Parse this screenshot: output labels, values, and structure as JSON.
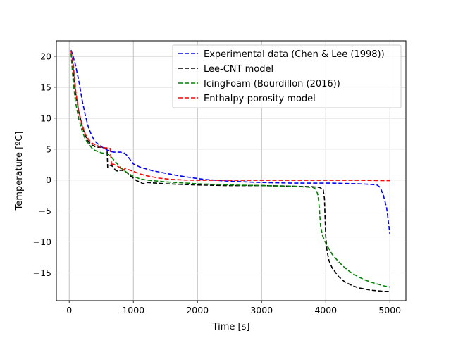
{
  "chart_data": {
    "type": "line",
    "xlabel": "Time [s]",
    "ylabel": "Temperature [ºC]",
    "xlim": [
      -200,
      5250
    ],
    "ylim": [
      -19.5,
      22.5
    ],
    "xticks": [
      0,
      1000,
      2000,
      3000,
      4000,
      5000
    ],
    "yticks": [
      -15,
      -10,
      -5,
      0,
      5,
      10,
      15,
      20
    ],
    "xtick_labels": [
      "0",
      "1000",
      "2000",
      "3000",
      "4000",
      "5000"
    ],
    "ytick_labels": [
      "−15",
      "−10",
      "−5",
      "0",
      "5",
      "10",
      "15",
      "20"
    ],
    "grid": true,
    "legend_position": "upper right",
    "series": [
      {
        "name": "Experimental data (Chen & Lee (1998))",
        "color": "#0000ff",
        "x": [
          30,
          60,
          100,
          150,
          200,
          250,
          300,
          350,
          400,
          450,
          500,
          550,
          600,
          650,
          700,
          750,
          800,
          850,
          900,
          950,
          1000,
          1100,
          1200,
          1300,
          1500,
          1700,
          1900,
          2100,
          2500,
          3000,
          3500,
          3900,
          4100,
          4500,
          4700,
          4800,
          4850,
          4900,
          4950,
          5000
        ],
        "y": [
          21,
          20,
          18.5,
          16,
          13,
          10.5,
          8.5,
          7.2,
          6.3,
          5.8,
          5.4,
          5.1,
          4.8,
          4.6,
          4.5,
          4.5,
          4.5,
          4.4,
          4,
          3.3,
          2.6,
          2.1,
          1.8,
          1.5,
          1.1,
          0.7,
          0.4,
          0.1,
          -0.2,
          -0.4,
          -0.5,
          -0.5,
          -0.5,
          -0.6,
          -0.7,
          -0.8,
          -1.2,
          -2.5,
          -4.5,
          -8.7
        ]
      },
      {
        "name": "Lee-CNT model",
        "color": "#000000",
        "x": [
          30,
          60,
          100,
          150,
          200,
          250,
          300,
          350,
          400,
          450,
          500,
          550,
          590,
          600,
          640,
          680,
          720,
          760,
          800,
          850,
          900,
          950,
          1000,
          1050,
          1100,
          1150,
          1200,
          1500,
          2000,
          2500,
          3000,
          3500,
          3800,
          3900,
          3960,
          3980,
          4000,
          4020,
          4050,
          4100,
          4200,
          4300,
          4400,
          4500,
          4600,
          4700,
          4800,
          4900,
          5000
        ],
        "y": [
          20.5,
          18,
          14,
          11,
          8.8,
          7.2,
          6.2,
          5.7,
          5.4,
          5.3,
          5.3,
          5.2,
          5.1,
          2,
          2.4,
          2.2,
          1.6,
          1.4,
          1.6,
          1.5,
          1.2,
          0.7,
          0.3,
          -0.1,
          -0.3,
          -0.6,
          -0.4,
          -0.6,
          -0.8,
          -0.9,
          -0.9,
          -1,
          -1.1,
          -1.2,
          -1.5,
          -3,
          -9,
          -11.5,
          -13,
          -14.2,
          -15.6,
          -16.5,
          -17,
          -17.4,
          -17.6,
          -17.8,
          -17.9,
          -18,
          -18
        ]
      },
      {
        "name": "IcingFoam (Bourdillon (2016))",
        "color": "#008000",
        "x": [
          30,
          60,
          100,
          150,
          200,
          250,
          300,
          350,
          400,
          450,
          500,
          550,
          600,
          650,
          700,
          750,
          800,
          900,
          1000,
          1100,
          1200,
          1500,
          2000,
          2500,
          3000,
          3500,
          3800,
          3850,
          3880,
          3900,
          3920,
          3950,
          4000,
          4100,
          4200,
          4300,
          4400,
          4500,
          4600,
          4700,
          4800,
          4900,
          5000
        ],
        "y": [
          20.5,
          16,
          12.5,
          9.8,
          8,
          6.6,
          5.9,
          5.2,
          4.8,
          4.6,
          4.4,
          4.3,
          4.2,
          3.8,
          3.2,
          2.6,
          2,
          1.2,
          0.6,
          0.2,
          0,
          -0.3,
          -0.6,
          -0.8,
          -0.9,
          -1,
          -1.2,
          -1.5,
          -2.5,
          -4.5,
          -7.5,
          -9,
          -10.2,
          -12,
          -13.2,
          -14.2,
          -15,
          -15.6,
          -16.1,
          -16.5,
          -16.8,
          -17.1,
          -17.3
        ]
      },
      {
        "name": "Enthalpy-porosity model",
        "color": "#ff0000",
        "x": [
          30,
          60,
          100,
          150,
          200,
          250,
          300,
          350,
          400,
          450,
          500,
          550,
          600,
          640,
          660,
          680,
          720,
          760,
          800,
          840,
          880,
          920,
          1000,
          1100,
          1200,
          1400,
          1600,
          1800,
          2000,
          2500,
          3000,
          3500,
          4000,
          4500,
          5000
        ],
        "y": [
          20.8,
          19,
          14.5,
          11,
          9,
          7.4,
          6.6,
          6,
          5.7,
          5.5,
          5.3,
          5.2,
          5.2,
          5.1,
          2.3,
          2.6,
          2.4,
          2.2,
          1.9,
          1.6,
          1.9,
          1.7,
          1.4,
          1,
          0.7,
          0.3,
          0.1,
          0,
          -0.05,
          -0.05,
          -0.05,
          -0.05,
          -0.05,
          -0.05,
          -0.1
        ]
      }
    ]
  }
}
